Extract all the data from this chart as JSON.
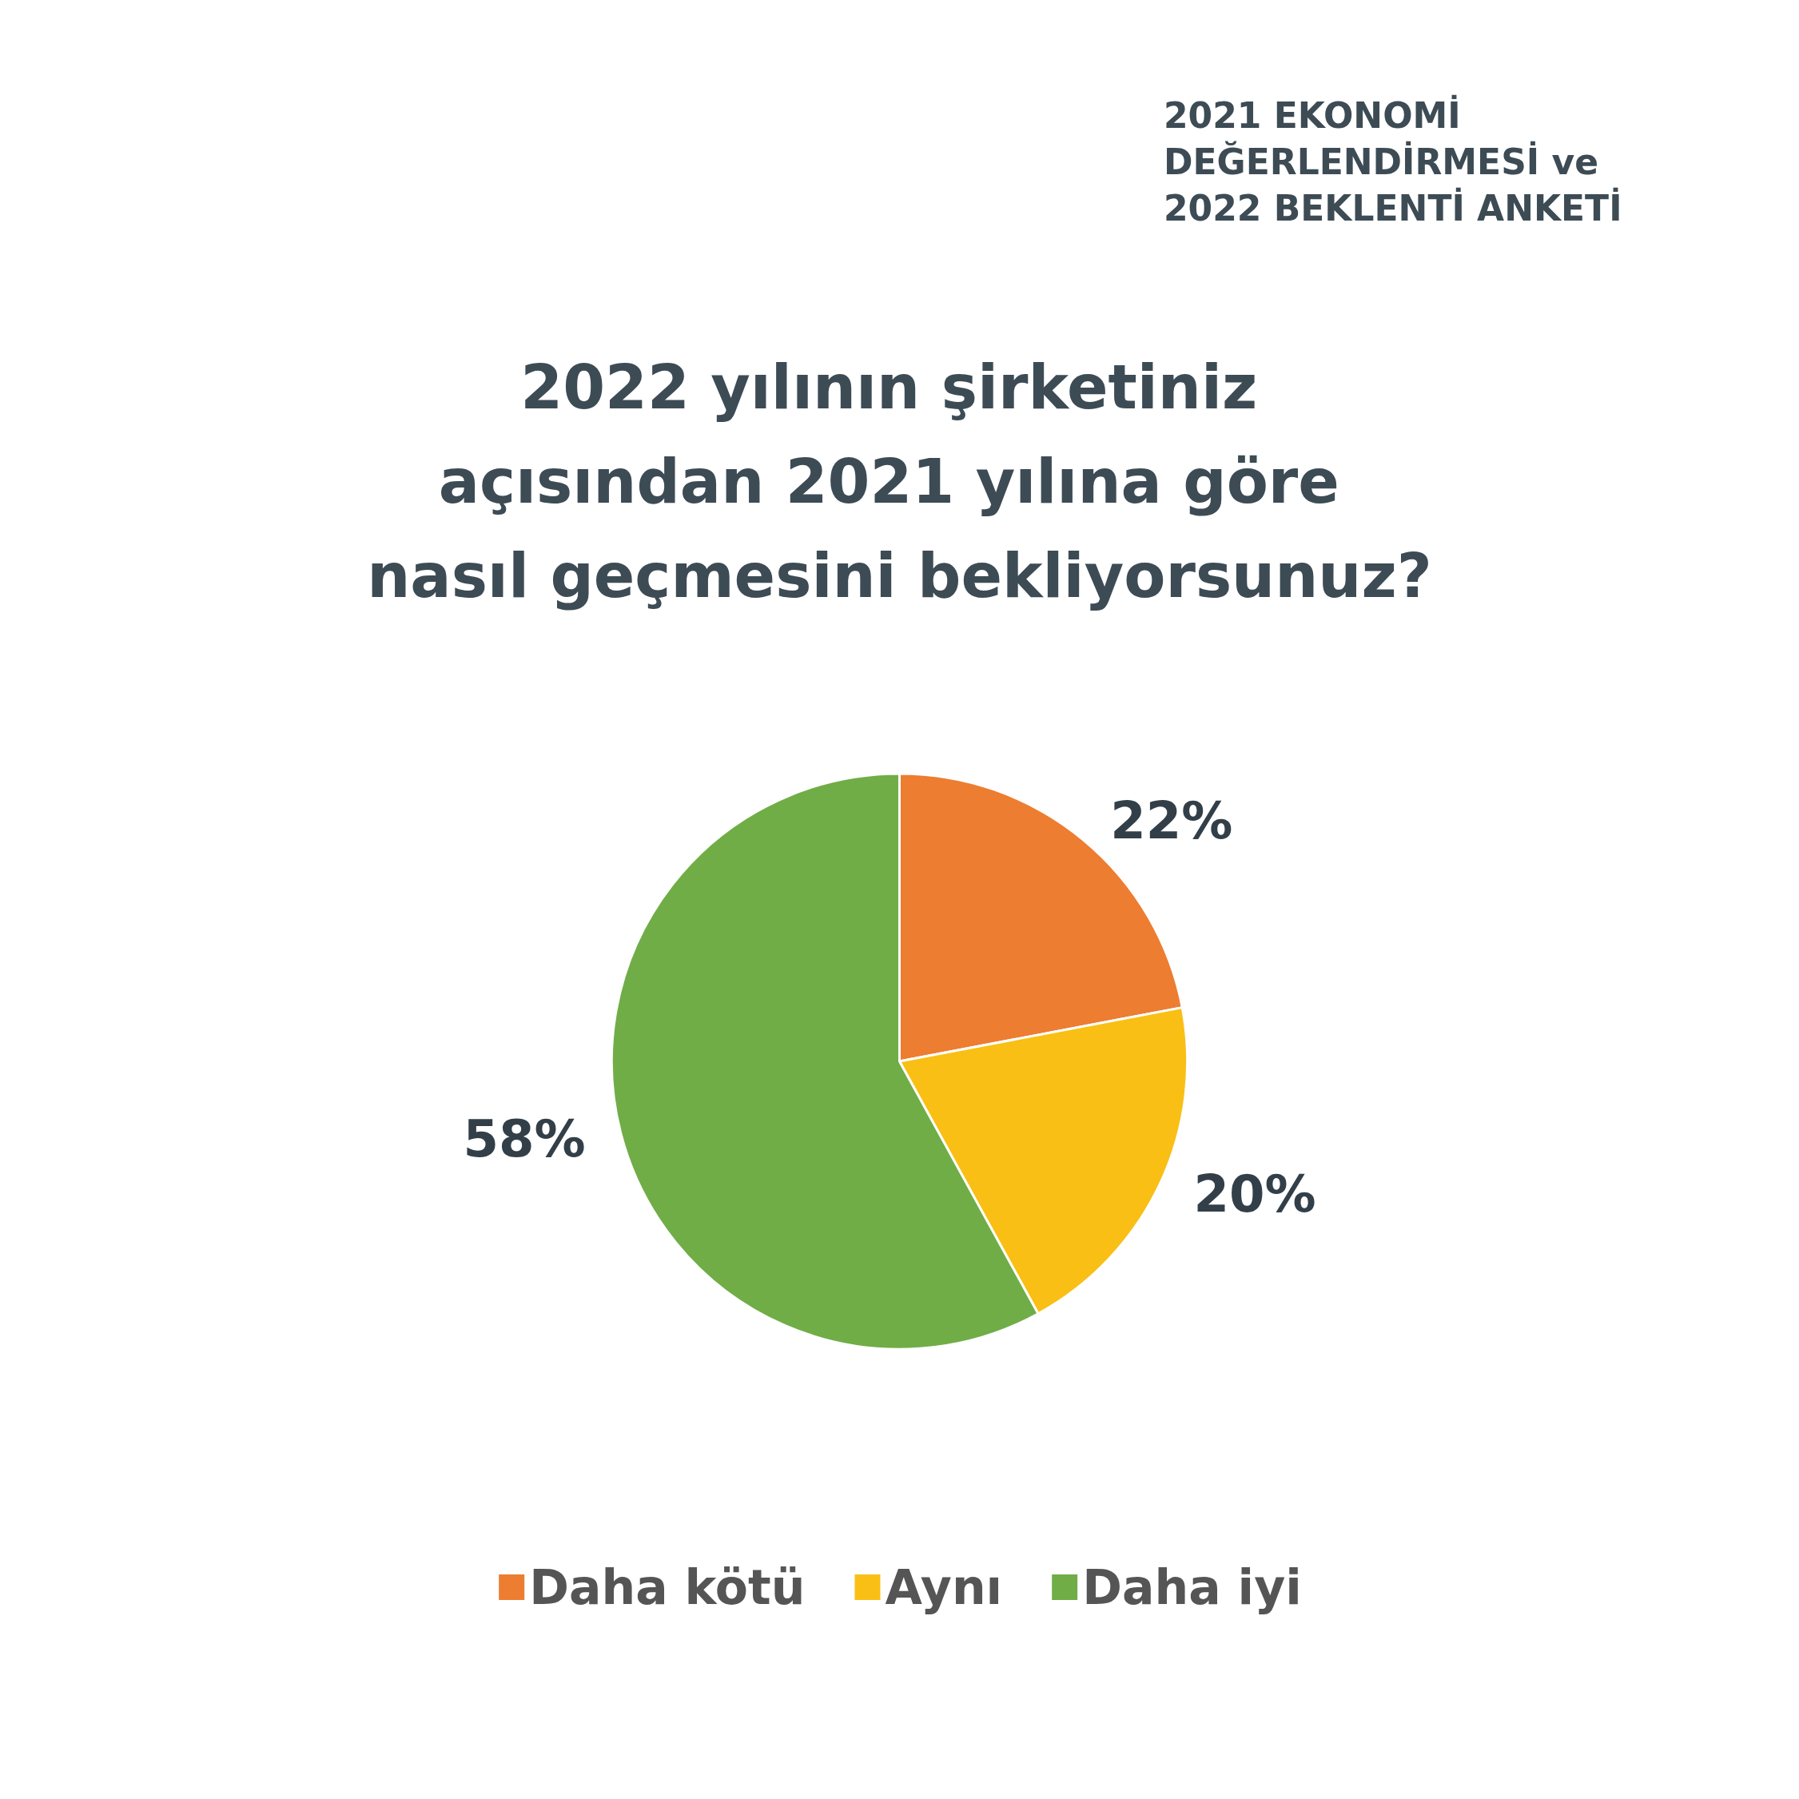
{
  "chart_data": {
    "type": "pie",
    "title": "2022 yılının şirketiniz açısından 2021 yılına göre nasıl geçmesini bekliyorsunuz?",
    "subtitle": "2021 EKONOMİ DEĞERLENDİRMESİ ve 2022 BEKLENTİ ANKETİ",
    "categories": [
      "Daha kötü",
      "Aynı",
      "Daha iyi"
    ],
    "values": [
      22,
      20,
      58
    ],
    "colors": [
      "#ed7d31",
      "#f9bf15",
      "#70ad47"
    ],
    "value_labels": [
      "22%",
      "20%",
      "58%"
    ],
    "legend": "bottom"
  }
}
